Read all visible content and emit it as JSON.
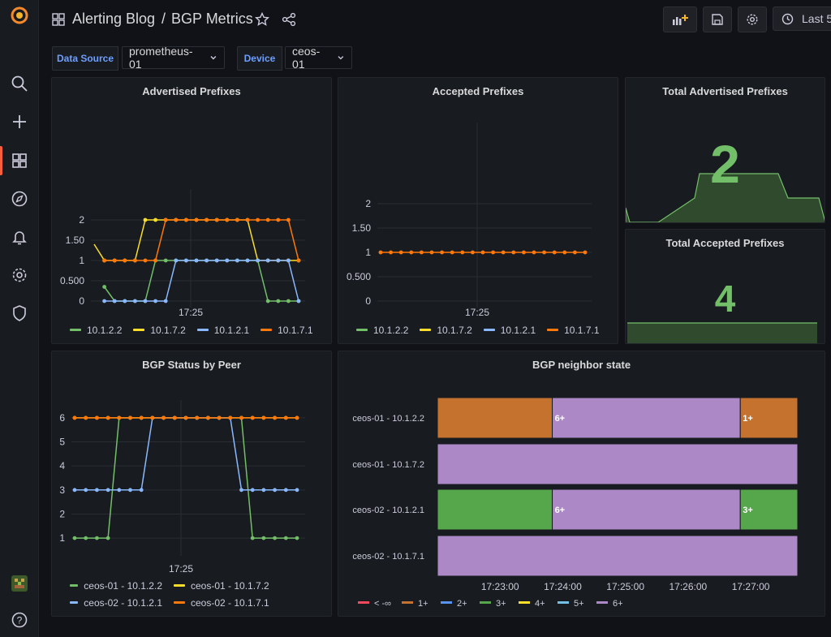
{
  "header": {
    "folder": "Alerting Blog",
    "separator": "/",
    "title": "BGP Metrics",
    "time_range": "Last 5"
  },
  "variables": [
    {
      "label": "Data Source",
      "value": "prometheus-01"
    },
    {
      "label": "Device",
      "value": "ceos-01"
    }
  ],
  "colors": {
    "green": "#73bf69",
    "yellow": "#fade2a",
    "blue": "#8ab8ff",
    "orange": "#ff780a",
    "purple": "#ad88c6",
    "bar_orange": "#c4722d",
    "bar_green": "#56a64b",
    "red": "#f2495c",
    "bar_blue": "#5794f2",
    "light_blue": "#73bfe6"
  },
  "panels": {
    "advertised": {
      "title": "Advertised Prefixes",
      "legend": [
        "10.1.2.2",
        "10.1.7.2",
        "10.1.2.1",
        "10.1.7.1"
      ]
    },
    "accepted": {
      "title": "Accepted Prefixes",
      "legend": [
        "10.1.2.2",
        "10.1.7.2",
        "10.1.2.1",
        "10.1.7.1"
      ]
    },
    "total_advertised": {
      "title": "Total Advertised Prefixes",
      "value": "2"
    },
    "total_accepted": {
      "title": "Total Accepted Prefixes",
      "value": "4"
    },
    "status_by_peer": {
      "title": "BGP Status by Peer",
      "legend": [
        "ceos-01 - 10.1.2.2",
        "ceos-01 - 10.1.7.2",
        "ceos-02 - 10.1.2.1",
        "ceos-02 - 10.1.7.1"
      ]
    },
    "neighbor_state": {
      "title": "BGP neighbor state",
      "rows": [
        "ceos-01 - 10.1.2.2",
        "ceos-01 - 10.1.7.2",
        "ceos-02 - 10.1.2.1",
        "ceos-02 - 10.1.7.1"
      ],
      "segment_labels": [
        "6+",
        "1+",
        "6+",
        "3+"
      ],
      "x_ticks": [
        "17:23:00",
        "17:24:00",
        "17:25:00",
        "17:26:00",
        "17:27:00"
      ],
      "legend": [
        "< -∞",
        "1+",
        "2+",
        "3+",
        "4+",
        "5+",
        "6+"
      ]
    }
  },
  "chart_data": [
    {
      "type": "line",
      "title": "Advertised Prefixes",
      "x_tick": "17:25",
      "y_ticks": [
        "0",
        "0.500",
        "1",
        "1.50",
        "2"
      ],
      "ylim": [
        0,
        2
      ],
      "n_points": 21,
      "series": [
        {
          "name": "10.1.2.2",
          "values": [
            null,
            0.35,
            0,
            0,
            0,
            0,
            1,
            1,
            1,
            1,
            1,
            1,
            1,
            1,
            1,
            1,
            1,
            0,
            0,
            0,
            0
          ]
        },
        {
          "name": "10.1.7.2",
          "values": [
            1.4,
            1,
            1,
            1,
            1,
            2,
            2,
            2,
            2,
            2,
            2,
            2,
            2,
            2,
            2,
            2,
            1,
            1,
            1,
            1,
            1
          ]
        },
        {
          "name": "10.1.2.1",
          "values": [
            null,
            0,
            0,
            0,
            0,
            0,
            0,
            0,
            1,
            1,
            1,
            1,
            1,
            1,
            1,
            1,
            1,
            1,
            1,
            1,
            0
          ]
        },
        {
          "name": "10.1.7.1",
          "values": [
            null,
            1,
            1,
            1,
            1,
            1,
            1,
            2,
            2,
            2,
            2,
            2,
            2,
            2,
            2,
            2,
            2,
            2,
            2,
            2,
            1
          ]
        }
      ]
    },
    {
      "type": "line",
      "title": "Accepted Prefixes",
      "x_tick": "17:25",
      "y_ticks": [
        "0",
        "0.500",
        "1",
        "1.50",
        "2"
      ],
      "ylim": [
        0,
        2
      ],
      "n_points": 21,
      "series": [
        {
          "name": "10.1.7.1",
          "values": [
            1,
            1,
            1,
            1,
            1,
            1,
            1,
            1,
            1,
            1,
            1,
            1,
            1,
            1,
            1,
            1,
            1,
            1,
            1,
            1,
            1
          ]
        }
      ]
    },
    {
      "type": "line",
      "title": "BGP Status by Peer",
      "x_tick": "17:25",
      "y_ticks": [
        "1",
        "2",
        "3",
        "4",
        "5",
        "6"
      ],
      "ylim": [
        0.7,
        6.3
      ],
      "n_points": 21,
      "series": [
        {
          "name": "ceos-01 - 10.1.2.2",
          "values": [
            1,
            1,
            1,
            1,
            6,
            6,
            6,
            6,
            6,
            6,
            6,
            6,
            6,
            6,
            6,
            6,
            1,
            1,
            1,
            1,
            1
          ]
        },
        {
          "name": "ceos-01 - 10.1.7.2",
          "values": [
            6,
            6,
            6,
            6,
            6,
            6,
            6,
            6,
            6,
            6,
            6,
            6,
            6,
            6,
            6,
            6,
            6,
            6,
            6,
            6,
            6
          ]
        },
        {
          "name": "ceos-02 - 10.1.2.1",
          "values": [
            3,
            3,
            3,
            3,
            3,
            3,
            3,
            6,
            6,
            6,
            6,
            6,
            6,
            6,
            6,
            3,
            3,
            3,
            3,
            3,
            3
          ]
        },
        {
          "name": "ceos-02 - 10.1.7.1",
          "values": [
            6,
            6,
            6,
            6,
            6,
            6,
            6,
            6,
            6,
            6,
            6,
            6,
            6,
            6,
            6,
            6,
            6,
            6,
            6,
            6,
            6
          ]
        }
      ]
    },
    {
      "type": "table",
      "title": "BGP neighbor state",
      "description": "state timeline, time range 17:22:00 to 17:27:45",
      "rows": [
        {
          "name": "ceos-01 - 10.1.2.2",
          "segments": [
            {
              "start": "17:22:00",
              "end": "17:23:50",
              "state": "1+"
            },
            {
              "start": "17:23:50",
              "end": "17:26:50",
              "state": "6+"
            },
            {
              "start": "17:26:50",
              "end": "17:27:45",
              "state": "1+"
            }
          ]
        },
        {
          "name": "ceos-01 - 10.1.7.2",
          "segments": [
            {
              "start": "17:22:00",
              "end": "17:27:45",
              "state": "6+"
            }
          ]
        },
        {
          "name": "ceos-02 - 10.1.2.1",
          "segments": [
            {
              "start": "17:22:00",
              "end": "17:23:50",
              "state": "3+"
            },
            {
              "start": "17:23:50",
              "end": "17:26:50",
              "state": "6+"
            },
            {
              "start": "17:26:50",
              "end": "17:27:45",
              "state": "3+"
            }
          ]
        },
        {
          "name": "ceos-02 - 10.1.7.1",
          "segments": [
            {
              "start": "17:22:00",
              "end": "17:27:45",
              "state": "6+"
            }
          ]
        }
      ]
    }
  ]
}
